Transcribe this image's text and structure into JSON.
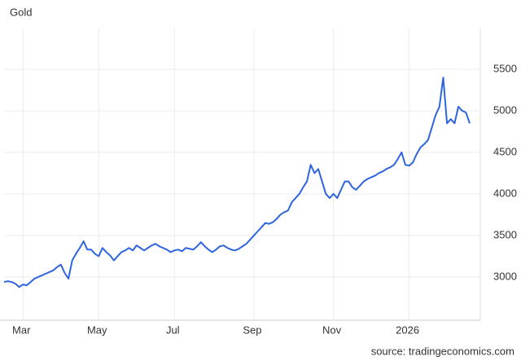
{
  "chart_data": {
    "type": "line",
    "title": "Gold",
    "source": "source: tradingeconomics.com",
    "categories": [
      null,
      null,
      null,
      null,
      null,
      "Mar",
      null,
      null,
      null,
      null,
      null,
      null,
      null,
      null,
      null,
      null,
      null,
      null,
      null,
      null,
      null,
      null,
      null,
      null,
      null,
      "May",
      null,
      null,
      null,
      null,
      null,
      null,
      null,
      null,
      null,
      null,
      null,
      null,
      null,
      null,
      null,
      null,
      null,
      null,
      null,
      "Jul",
      null,
      null,
      null,
      null,
      null,
      null,
      null,
      null,
      null,
      null,
      null,
      null,
      null,
      null,
      null,
      null,
      null,
      null,
      null,
      null,
      "Sep",
      null,
      null,
      null,
      null,
      null,
      null,
      null,
      null,
      null,
      null,
      null,
      null,
      null,
      null,
      null,
      null,
      null,
      null,
      null,
      null,
      "Nov",
      null,
      null,
      null,
      null,
      null,
      null,
      null,
      null,
      null,
      null,
      null,
      null,
      null,
      null,
      null,
      null,
      null,
      null,
      null,
      "2026",
      null,
      null,
      null,
      null,
      null,
      null,
      null,
      null,
      null,
      null,
      null,
      null,
      null,
      null,
      null,
      null
    ],
    "series": [
      {
        "name": "Gold",
        "color": "#2e64e0",
        "values": [
          2940,
          2950,
          2940,
          2920,
          2880,
          2910,
          2900,
          2940,
          2980,
          3000,
          3020,
          3040,
          3060,
          3080,
          3120,
          3150,
          3050,
          2980,
          3200,
          3280,
          3350,
          3430,
          3330,
          3330,
          3280,
          3250,
          3350,
          3300,
          3260,
          3200,
          3250,
          3300,
          3320,
          3350,
          3320,
          3380,
          3350,
          3320,
          3350,
          3380,
          3400,
          3370,
          3350,
          3330,
          3300,
          3320,
          3330,
          3310,
          3350,
          3340,
          3330,
          3370,
          3420,
          3370,
          3330,
          3300,
          3330,
          3370,
          3380,
          3350,
          3330,
          3320,
          3340,
          3370,
          3400,
          3450,
          3500,
          3550,
          3600,
          3650,
          3640,
          3660,
          3700,
          3750,
          3780,
          3800,
          3900,
          3950,
          4000,
          4080,
          4150,
          4350,
          4250,
          4300,
          4150,
          4000,
          3950,
          4000,
          3950,
          4050,
          4150,
          4150,
          4080,
          4050,
          4100,
          4150,
          4180,
          4200,
          4220,
          4250,
          4270,
          4300,
          4320,
          4350,
          4420,
          4500,
          4350,
          4340,
          4380,
          4480,
          4560,
          4600,
          4650,
          4800,
          4950,
          5050,
          5400,
          4850,
          4900,
          4850,
          5050,
          5000,
          4980,
          4850
        ]
      }
    ],
    "ylim": [
      2480,
      5990
    ],
    "yticks": [
      3000,
      3500,
      4000,
      4500,
      5000,
      5500
    ],
    "grid": true
  }
}
